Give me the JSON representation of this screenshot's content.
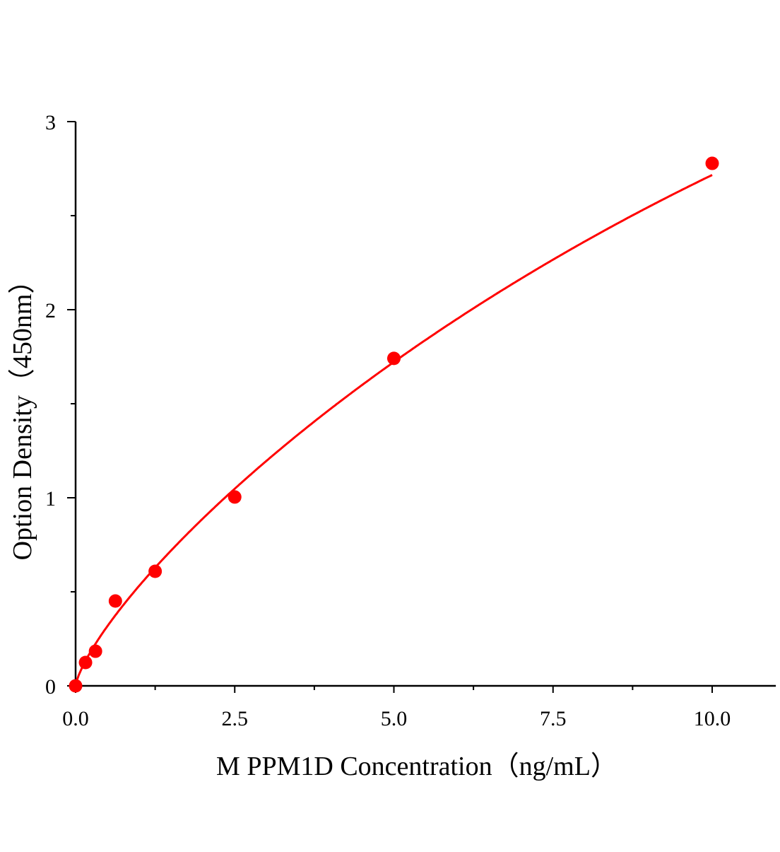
{
  "chart_data": {
    "type": "scatter",
    "title": "",
    "xlabel": "M PPM1D Concentration（ng/mL）",
    "ylabel": "Option Density（450nm）",
    "xlim": [
      0,
      11
    ],
    "ylim": [
      0,
      3
    ],
    "xticks": [
      "0.0",
      "2.5",
      "5.0",
      "7.5",
      "10.0"
    ],
    "xtick_values": [
      0,
      2.5,
      5,
      7.5,
      10
    ],
    "xminor_values": [
      1.25,
      3.75,
      6.25,
      8.75
    ],
    "yticks": [
      "0",
      "1",
      "2",
      "3"
    ],
    "ytick_values": [
      0,
      1,
      2,
      3
    ],
    "yminor_values": [
      0.5,
      1.5,
      2.5
    ],
    "grid": false,
    "color": "#ff0000",
    "series": [
      {
        "x": [
          0,
          0.156,
          0.3125,
          0.625,
          1.25,
          2.5,
          5,
          10
        ],
        "y": [
          0,
          0.124,
          0.184,
          0.451,
          0.609,
          1.004,
          1.741,
          2.778
        ],
        "fit_curve": true
      }
    ]
  }
}
